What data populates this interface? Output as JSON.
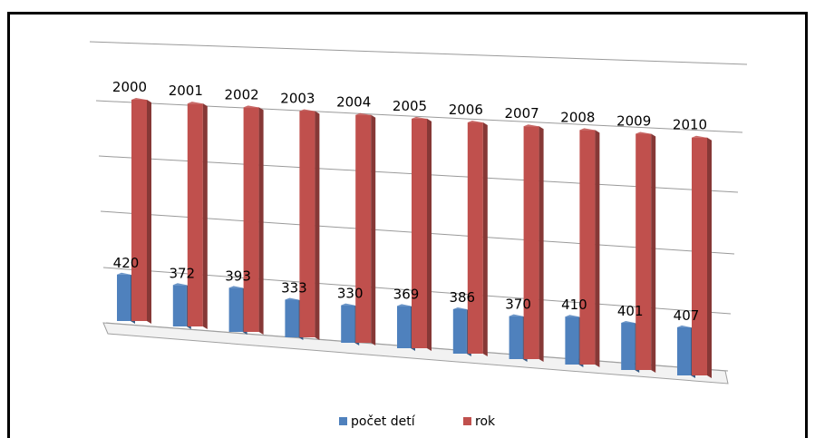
{
  "chart_data": {
    "type": "bar",
    "style": "3d-clustered-column",
    "categories": [
      "2000",
      "2001",
      "2002",
      "2003",
      "2004",
      "2005",
      "2006",
      "2007",
      "2008",
      "2009",
      "2010"
    ],
    "series": [
      {
        "name": "počet detí",
        "color": "#4F81BD",
        "values": [
          420,
          372,
          393,
          333,
          330,
          369,
          386,
          370,
          410,
          401,
          407
        ],
        "data_labels": [
          "420",
          "372",
          "393",
          "333",
          "330",
          "369",
          "386",
          "370",
          "410",
          "401",
          "407"
        ]
      },
      {
        "name": "rok",
        "color": "#C0504D",
        "values": [
          2000,
          2001,
          2002,
          2003,
          2004,
          2005,
          2006,
          2007,
          2008,
          2009,
          2010
        ],
        "data_labels": [
          "2000",
          "2001",
          "2002",
          "2003",
          "2004",
          "2005",
          "2006",
          "2007",
          "2008",
          "2009",
          "2010"
        ]
      }
    ],
    "ylim": [
      0,
      2500
    ],
    "grid": true,
    "legend": "bottom"
  }
}
